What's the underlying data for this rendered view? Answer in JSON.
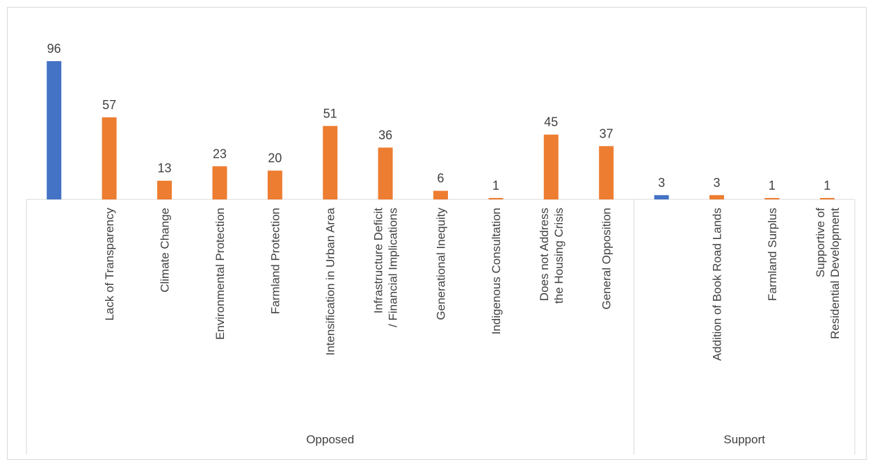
{
  "chart_data": {
    "type": "bar",
    "groups": [
      {
        "label": "Opposed",
        "items": [
          {
            "label": "",
            "value": 96,
            "color": "#4472c4"
          },
          {
            "label": "Lack of Transparency",
            "value": 57,
            "color": "#ed7d31"
          },
          {
            "label": "Climate Change",
            "value": 13,
            "color": "#ed7d31"
          },
          {
            "label": "Environmental Protection",
            "value": 23,
            "color": "#ed7d31"
          },
          {
            "label": "Farmland Protection",
            "value": 20,
            "color": "#ed7d31"
          },
          {
            "label": "Intensification in Urban Area",
            "value": 51,
            "color": "#ed7d31"
          },
          {
            "label": "Infrastructure Deficit / Financial Implications",
            "value": 36,
            "color": "#ed7d31"
          },
          {
            "label": "Generational Inequity",
            "value": 6,
            "color": "#ed7d31"
          },
          {
            "label": "Indigenous Consultation",
            "value": 1,
            "color": "#ed7d31"
          },
          {
            "label": "Does not Address the Housing Crisis",
            "value": 45,
            "color": "#ed7d31"
          },
          {
            "label": "General Opposition",
            "value": 37,
            "color": "#ed7d31"
          }
        ]
      },
      {
        "label": "Support",
        "items": [
          {
            "label": "",
            "value": 3,
            "color": "#4472c4"
          },
          {
            "label": "Addition of Book Road Lands",
            "value": 3,
            "color": "#ed7d31"
          },
          {
            "label": "Farmland Surplus",
            "value": 1,
            "color": "#ed7d31"
          },
          {
            "label": "Supportive of Residential Development",
            "value": 1,
            "color": "#ed7d31"
          }
        ]
      }
    ],
    "ylim": [
      0,
      96
    ],
    "data_labels": true,
    "grid": false,
    "legend": "none"
  }
}
